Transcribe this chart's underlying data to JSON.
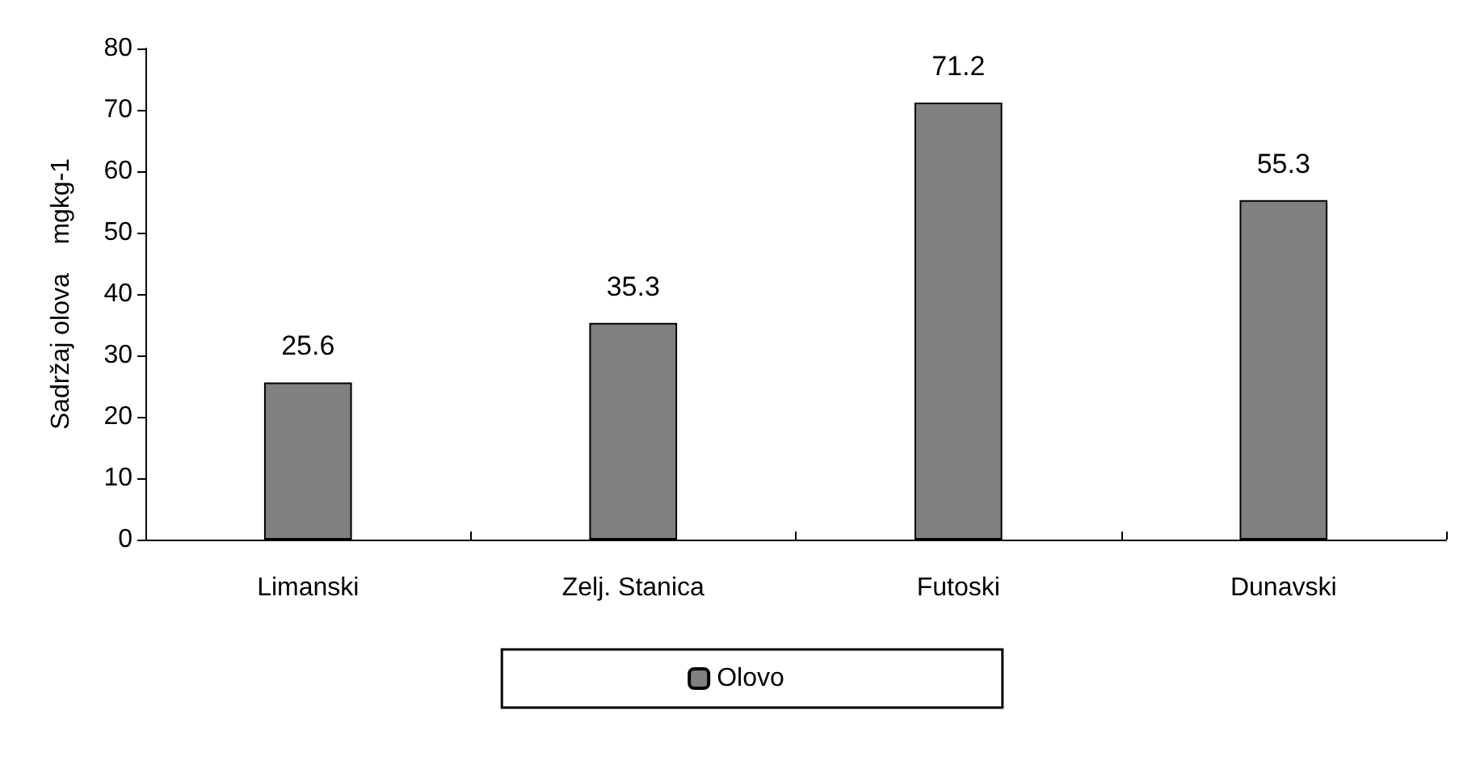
{
  "chart_data": {
    "type": "bar",
    "ylabel": "Sadržaj olova    mgkg-1",
    "categories": [
      "Limanski",
      "Zelj. Stanica",
      "Futoski",
      "Dunavski"
    ],
    "series": [
      {
        "name": "Olovo",
        "color": "#808080",
        "values": [
          25.6,
          35.3,
          71.2,
          55.3
        ]
      }
    ],
    "ylim": [
      0,
      80
    ],
    "yticks": [
      0,
      10,
      20,
      30,
      40,
      50,
      60,
      70,
      80
    ],
    "grid": false,
    "legend": "bottom",
    "data_labels": true
  }
}
